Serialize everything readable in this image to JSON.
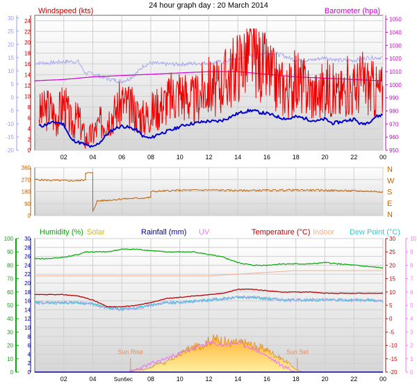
{
  "header": {
    "title": "24 hour graph day : 20 March 2014"
  },
  "colors": {
    "windspeed": "#ee0000",
    "windavg": "#0000cc",
    "gust_shadow": "#a9a9f0",
    "barometer": "#cc00cc",
    "direction": "#c06000",
    "humidity": "#00aa00",
    "solar": "#d8b400",
    "solar_fill": "#ffb640",
    "rainfall": "#000099",
    "uv": "#ee77ee",
    "temperature": "#bb0000",
    "indoor": "#f0b090",
    "dewpoint": "#30cccc",
    "sunmarks": "#e09060"
  },
  "x_ticks": [
    "02",
    "04",
    "06",
    "08",
    "10",
    "12",
    "14",
    "16",
    "18",
    "20",
    "22",
    "00"
  ],
  "chart_data": [
    {
      "type": "line",
      "name": "wind-barometer",
      "title": "24 hour graph day : 20 March 2014",
      "x_label": "hour",
      "xlim": [
        0,
        24
      ],
      "left_axis": {
        "label": "Windspeed (kts)",
        "ticks": [
          0,
          2,
          4,
          6,
          8,
          10,
          12,
          14,
          16,
          18,
          20,
          22,
          24
        ],
        "ylim": [
          0,
          25
        ]
      },
      "far_left_axis": {
        "ticks": [
          -20,
          -15,
          -10,
          -5,
          0,
          5,
          10,
          15,
          20,
          25,
          30
        ],
        "ylim": [
          -20,
          31
        ]
      },
      "right_axis": {
        "label": "Barometer (hpa)",
        "ticks": [
          950,
          960,
          970,
          980,
          990,
          1000,
          1010,
          1020,
          1030,
          1040,
          1050
        ],
        "ylim": [
          950,
          1053
        ]
      },
      "grid": true,
      "series": [
        {
          "name": "Windspeed (kts)",
          "axis": "left",
          "x": [
            0.5,
            1,
            1.5,
            2,
            2.5,
            3,
            3.5,
            4,
            4.5,
            5,
            5.5,
            6,
            6.5,
            7,
            7.5,
            8,
            8.5,
            9,
            9.5,
            10,
            10.5,
            11,
            11.5,
            12,
            12.5,
            13,
            13.5,
            14,
            14.5,
            15,
            15.5,
            16,
            16.5,
            17,
            17.5,
            18,
            18.5,
            19,
            19.5,
            20,
            20.5,
            21,
            21.5,
            22,
            22.5,
            23,
            23.5,
            24
          ],
          "y": [
            7,
            8,
            6,
            9,
            5,
            6,
            2,
            3,
            5,
            6,
            7,
            9,
            8,
            7,
            6,
            7,
            8,
            9,
            10,
            11,
            10,
            9,
            11,
            12,
            11,
            13,
            14,
            16,
            17,
            18,
            16,
            15,
            13,
            12,
            11,
            13,
            12,
            11,
            10,
            12,
            11,
            10,
            12,
            11,
            13,
            12,
            11,
            11
          ]
        },
        {
          "name": "Wind average",
          "axis": "left",
          "x": [
            0.5,
            1,
            1.5,
            2,
            2.5,
            3,
            3.5,
            4,
            4.5,
            5,
            5.5,
            6,
            6.5,
            7,
            7.5,
            8,
            8.5,
            9,
            9.5,
            10,
            10.5,
            11,
            11.5,
            12,
            12.5,
            13,
            13.5,
            14,
            14.5,
            15,
            15.5,
            16,
            16.5,
            17,
            17.5,
            18,
            18.5,
            19,
            19.5,
            20,
            20.5,
            21,
            21.5,
            22,
            22.5,
            23,
            23.5,
            24
          ],
          "y": [
            4.5,
            5,
            5.2,
            4.8,
            2,
            1.5,
            1,
            0.5,
            1.5,
            3,
            4,
            4.5,
            4.2,
            3.8,
            2.5,
            2.2,
            3,
            3.4,
            3.8,
            4.4,
            4.8,
            5,
            5.2,
            5.4,
            5.3,
            5.6,
            6.2,
            6.8,
            7.2,
            7.4,
            7,
            6.8,
            6.4,
            6,
            5.8,
            6.2,
            6,
            5.6,
            5.4,
            5.8,
            5,
            5.2,
            5.5,
            5.8,
            4.8,
            5.2,
            6.2,
            6.6
          ]
        },
        {
          "name": "Gust trace",
          "axis": "far_left",
          "x": [
            0,
            1,
            2,
            3,
            3.5,
            4,
            4.5,
            5,
            5.5,
            6,
            6.5,
            7,
            7.5,
            8,
            9,
            10,
            11,
            12,
            13,
            14,
            15,
            16,
            17,
            18,
            19,
            20,
            21,
            22,
            23,
            24
          ],
          "y": [
            13,
            13,
            13.5,
            13.5,
            9,
            9,
            8,
            7,
            6.5,
            6,
            7,
            9,
            12,
            13,
            12.5,
            12.5,
            12.8,
            13,
            13.5,
            14.5,
            16,
            17,
            16,
            14,
            14,
            15,
            14,
            14,
            15,
            15
          ]
        },
        {
          "name": "Barometer (hpa)",
          "axis": "right",
          "x": [
            0,
            2,
            4,
            6,
            8,
            10,
            12,
            14,
            16,
            18,
            20,
            22,
            24
          ],
          "y": [
            1003,
            1004,
            1006,
            1007,
            1008,
            1009,
            1010,
            1010,
            1008,
            1006,
            1005,
            1004,
            1003
          ]
        }
      ]
    },
    {
      "type": "line",
      "name": "wind-direction",
      "xlim": [
        0,
        24
      ],
      "left_axis": {
        "ticks": [
          0,
          90,
          180,
          270,
          360
        ],
        "ylim": [
          0,
          360
        ]
      },
      "right_axis": {
        "labels": [
          "N",
          "W",
          "S",
          "E",
          "N"
        ]
      },
      "grid": true,
      "series": [
        {
          "name": "Wind direction",
          "axis": "left",
          "x": [
            0,
            1,
            2,
            3,
            3.5,
            3.5,
            4,
            4,
            4.3,
            5,
            6,
            7,
            8,
            8,
            9,
            10,
            12,
            14,
            16,
            18,
            20,
            22,
            24
          ],
          "y": [
            270,
            265,
            262,
            262,
            270,
            320,
            320,
            30,
            110,
            115,
            125,
            130,
            135,
            180,
            185,
            190,
            192,
            188,
            190,
            192,
            190,
            185,
            180
          ]
        }
      ]
    },
    {
      "type": "line",
      "name": "temp-humidity-rain-solar",
      "xlim": [
        0,
        24
      ],
      "far_left_axis": {
        "label": "Humidity (%)",
        "ticks": [
          0,
          10,
          20,
          30,
          40,
          50,
          60,
          70,
          80,
          90,
          100
        ],
        "ylim": [
          0,
          100
        ]
      },
      "left_axis": {
        "label": "Rainfall (mm)",
        "ticks": [
          0,
          2,
          4,
          6,
          8,
          10,
          12,
          14,
          16,
          18,
          20,
          22,
          24,
          26,
          28,
          30
        ],
        "ylim": [
          0,
          30
        ]
      },
      "right_axis": {
        "label": "Temperature (°C)",
        "ticks": [
          -20,
          -15,
          -10,
          -5,
          0,
          5,
          10,
          15,
          20,
          25,
          30
        ],
        "ylim": [
          -20,
          30
        ]
      },
      "far_right_axis": {
        "ticks": [
          0,
          1,
          2,
          3,
          4,
          5,
          6,
          7,
          8,
          9,
          10
        ],
        "ylim": [
          0,
          10
        ]
      },
      "legend": [
        "Humidity (%)",
        "Solar",
        "Rainfall (mm)",
        "UV",
        "Temperature (°C)",
        "Indoor",
        "Dew Point (°C)"
      ],
      "annotations": [
        "Sun Rise",
        "Sun Set",
        "Sun6ec"
      ],
      "grid": true,
      "series": [
        {
          "name": "Humidity (%)",
          "axis": "far_left",
          "x": [
            0,
            1,
            2,
            3,
            3.5,
            4,
            5,
            6,
            7,
            8,
            9,
            10,
            11,
            12,
            13,
            14,
            15,
            16,
            17,
            18,
            19,
            20,
            21,
            22,
            23,
            24
          ],
          "y": [
            85,
            85,
            86,
            88,
            90,
            90,
            90,
            92,
            92,
            91,
            90,
            90,
            90,
            88,
            86,
            82,
            80,
            80,
            81,
            81,
            81,
            82,
            81,
            80,
            79,
            78
          ]
        },
        {
          "name": "Rainfall (mm)",
          "axis": "left",
          "x": [
            0,
            24
          ],
          "y": [
            0,
            0
          ]
        },
        {
          "name": "Temperature (°C)",
          "axis": "right",
          "x": [
            0,
            1,
            2,
            3,
            4,
            5,
            6,
            7,
            8,
            9,
            10,
            11,
            12,
            13,
            14,
            15,
            16,
            17,
            18,
            19,
            20,
            21,
            22,
            23,
            24
          ],
          "y": [
            9,
            9,
            9,
            8.5,
            7,
            4.5,
            4.5,
            5,
            6,
            7.5,
            8,
            8.5,
            9,
            9.5,
            11,
            11,
            10.5,
            10,
            10,
            10,
            9.5,
            9.5,
            9.5,
            9.5,
            9.5
          ]
        },
        {
          "name": "Indoor",
          "axis": "right",
          "x": [
            0,
            3,
            6,
            9,
            12,
            15,
            18,
            20,
            22,
            24
          ],
          "y": [
            16,
            16,
            16,
            16,
            16,
            17,
            18,
            18,
            18,
            18
          ]
        },
        {
          "name": "Dew Point (°C)",
          "axis": "right",
          "x": [
            0,
            1,
            2,
            3,
            4,
            5,
            6,
            7,
            8,
            9,
            10,
            11,
            12,
            13,
            14,
            15,
            16,
            17,
            18,
            19,
            20,
            21,
            22,
            23,
            24
          ],
          "y": [
            6,
            6,
            6,
            6,
            5.5,
            4,
            3.5,
            4,
            5,
            6,
            6,
            6.5,
            7,
            7.5,
            8,
            8,
            7.5,
            7,
            7,
            7,
            7,
            7,
            7,
            7,
            6.5
          ]
        },
        {
          "name": "Solar",
          "axis": "left",
          "x": [
            6.5,
            7,
            7.5,
            8,
            8.5,
            9,
            9.5,
            10,
            10.5,
            11,
            11.5,
            12,
            12.5,
            13,
            13.5,
            14,
            14.5,
            15,
            15.5,
            16,
            16.5,
            17,
            17.5,
            18,
            18.5
          ],
          "y": [
            0,
            0.5,
            0.5,
            1,
            2,
            2,
            3,
            4,
            5,
            5.5,
            6,
            7,
            7.5,
            7,
            6.5,
            6.5,
            6.5,
            6,
            5.5,
            5,
            4,
            3,
            2,
            0.5,
            0
          ]
        },
        {
          "name": "UV",
          "axis": "far_right",
          "x": [
            6.5,
            7,
            8,
            9,
            10,
            11,
            12,
            13,
            14,
            15,
            16,
            17,
            18
          ],
          "y": [
            0,
            0.2,
            0.6,
            1.0,
            1.4,
            1.8,
            2.2,
            2.0,
            2.2,
            1.8,
            1.2,
            0.5,
            0
          ]
        }
      ]
    }
  ]
}
